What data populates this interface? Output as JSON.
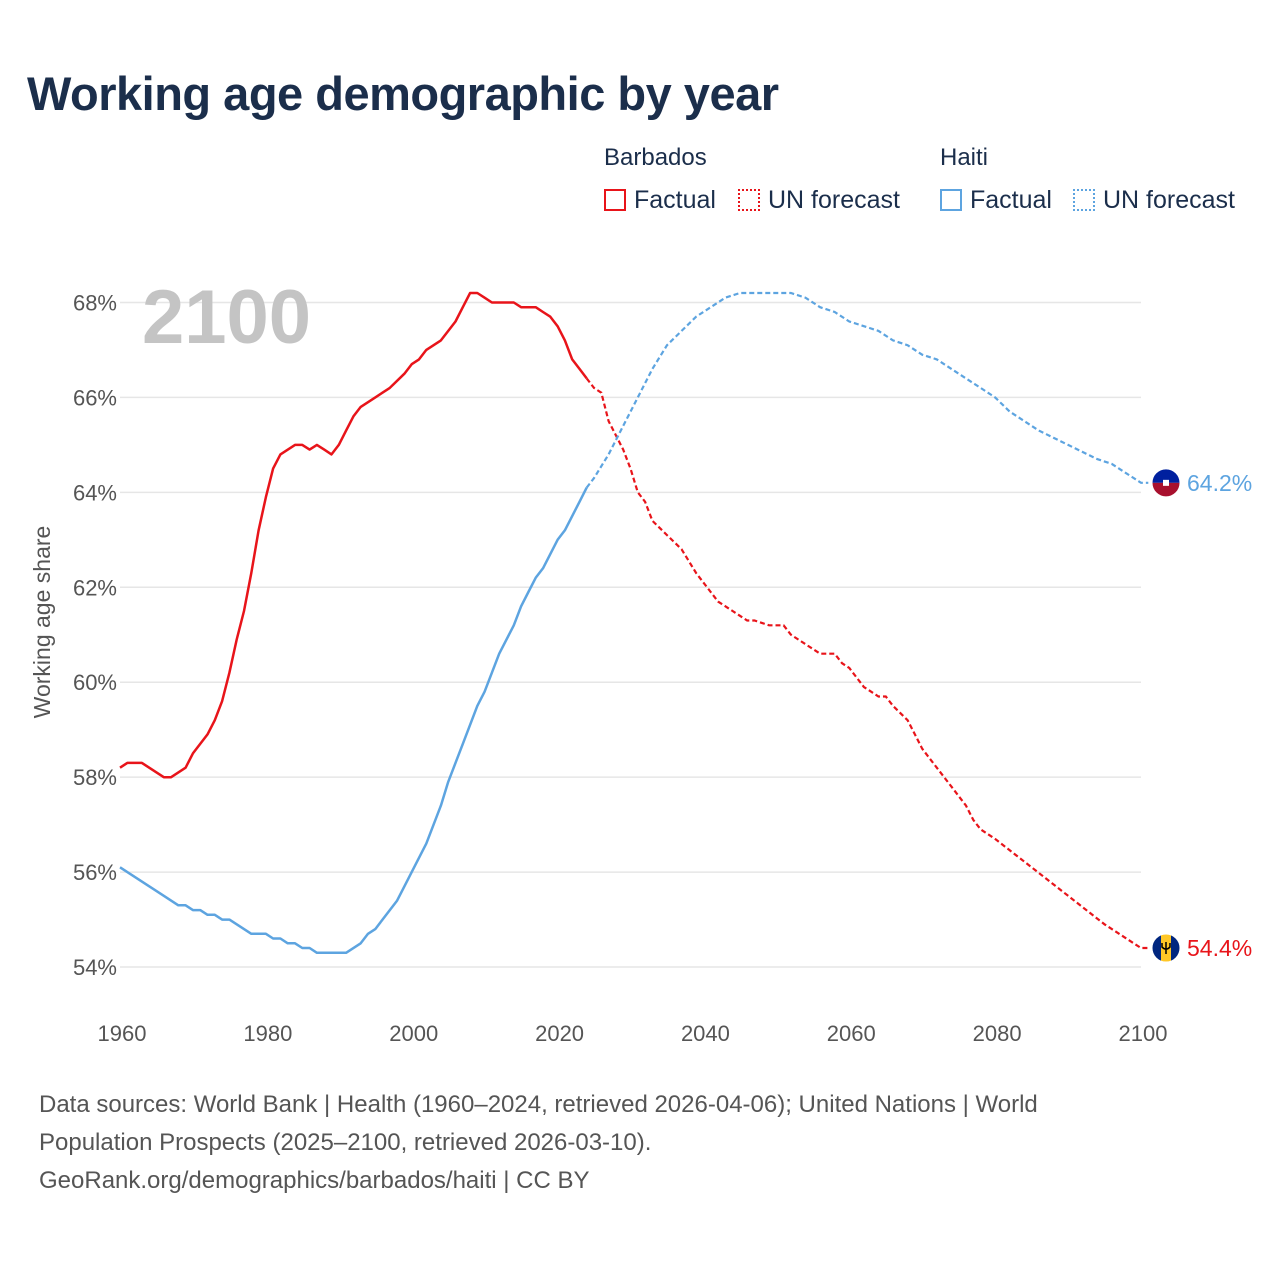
{
  "title": "Working age demographic by year",
  "legend": {
    "groups": [
      {
        "name": "Barbados",
        "factual_label": "Factual",
        "forecast_label": "UN forecast",
        "color": "#e8141a"
      },
      {
        "name": "Haiti",
        "factual_label": "Factual",
        "forecast_label": "UN forecast",
        "color": "#5da4e0"
      }
    ]
  },
  "sources": {
    "line1": "Data sources: World Bank | Health (1960–2024, retrieved 2026-04-06); United Nations | World",
    "line2": "Population Prospects (2025–2100, retrieved 2026-03-10).",
    "line3": "GeoRank.org/demographics/barbados/haiti | CC BY"
  },
  "chart_data": {
    "type": "line",
    "title": "Working age demographic by year",
    "ylabel": "Working age share",
    "xlabel": "",
    "xlim": [
      1960,
      2100
    ],
    "ylim": [
      53.2,
      69
    ],
    "x_ticks": [
      1960,
      1980,
      2000,
      2020,
      2040,
      2060,
      2080,
      2100
    ],
    "x_tick_labels": [
      "1960",
      "1980",
      "2000",
      "2020",
      "2040",
      "2060",
      "2080",
      "2100"
    ],
    "y_ticks": [
      54,
      56,
      58,
      60,
      62,
      64,
      66,
      68
    ],
    "y_tick_labels": [
      "54%",
      "56%",
      "58%",
      "60%",
      "62%",
      "64%",
      "66%",
      "68%"
    ],
    "year_watermark": "2100",
    "factual_end_year": 2024,
    "series": [
      {
        "name": "Barbados",
        "color": "#e8141a",
        "end_label": "54.4%",
        "flag": "barbados",
        "points": [
          [
            1960,
            58.2
          ],
          [
            1961,
            58.3
          ],
          [
            1963,
            58.3
          ],
          [
            1965,
            58.1
          ],
          [
            1966,
            58.0
          ],
          [
            1967,
            58.0
          ],
          [
            1969,
            58.2
          ],
          [
            1970,
            58.5
          ],
          [
            1972,
            58.9
          ],
          [
            1973,
            59.2
          ],
          [
            1974,
            59.6
          ],
          [
            1975,
            60.2
          ],
          [
            1976,
            60.9
          ],
          [
            1977,
            61.5
          ],
          [
            1978,
            62.3
          ],
          [
            1979,
            63.2
          ],
          [
            1980,
            63.9
          ],
          [
            1981,
            64.5
          ],
          [
            1982,
            64.8
          ],
          [
            1984,
            65.0
          ],
          [
            1985,
            65.0
          ],
          [
            1986,
            64.9
          ],
          [
            1987,
            65.0
          ],
          [
            1988,
            64.9
          ],
          [
            1989,
            64.8
          ],
          [
            1990,
            65.0
          ],
          [
            1991,
            65.3
          ],
          [
            1992,
            65.6
          ],
          [
            1993,
            65.8
          ],
          [
            1995,
            66.0
          ],
          [
            1997,
            66.2
          ],
          [
            1999,
            66.5
          ],
          [
            2000,
            66.7
          ],
          [
            2001,
            66.8
          ],
          [
            2002,
            67.0
          ],
          [
            2004,
            67.2
          ],
          [
            2006,
            67.6
          ],
          [
            2007,
            67.9
          ],
          [
            2008,
            68.2
          ],
          [
            2009,
            68.2
          ],
          [
            2010,
            68.1
          ],
          [
            2011,
            68.0
          ],
          [
            2014,
            68.0
          ],
          [
            2015,
            67.9
          ],
          [
            2017,
            67.9
          ],
          [
            2018,
            67.8
          ],
          [
            2019,
            67.7
          ],
          [
            2020,
            67.5
          ],
          [
            2021,
            67.2
          ],
          [
            2022,
            66.8
          ],
          [
            2023,
            66.6
          ],
          [
            2024,
            66.4
          ],
          [
            2025,
            66.2
          ],
          [
            2026,
            66.1
          ],
          [
            2027,
            65.5
          ],
          [
            2029,
            64.9
          ],
          [
            2030,
            64.5
          ],
          [
            2031,
            64.0
          ],
          [
            2032,
            63.8
          ],
          [
            2033,
            63.4
          ],
          [
            2035,
            63.1
          ],
          [
            2037,
            62.8
          ],
          [
            2039,
            62.3
          ],
          [
            2041,
            61.9
          ],
          [
            2042,
            61.7
          ],
          [
            2044,
            61.5
          ],
          [
            2046,
            61.3
          ],
          [
            2047,
            61.3
          ],
          [
            2049,
            61.2
          ],
          [
            2051,
            61.2
          ],
          [
            2052,
            61.0
          ],
          [
            2054,
            60.8
          ],
          [
            2056,
            60.6
          ],
          [
            2058,
            60.6
          ],
          [
            2059,
            60.4
          ],
          [
            2060,
            60.3
          ],
          [
            2062,
            59.9
          ],
          [
            2064,
            59.7
          ],
          [
            2065,
            59.7
          ],
          [
            2066,
            59.5
          ],
          [
            2068,
            59.2
          ],
          [
            2069,
            58.9
          ],
          [
            2070,
            58.6
          ],
          [
            2072,
            58.2
          ],
          [
            2074,
            57.8
          ],
          [
            2076,
            57.4
          ],
          [
            2077,
            57.1
          ],
          [
            2078,
            56.9
          ],
          [
            2080,
            56.7
          ],
          [
            2085,
            56.1
          ],
          [
            2090,
            55.5
          ],
          [
            2095,
            54.9
          ],
          [
            2100,
            54.4
          ],
          [
            2101,
            54.4
          ]
        ]
      },
      {
        "name": "Haiti",
        "color": "#5da4e0",
        "end_label": "64.2%",
        "flag": "haiti",
        "points": [
          [
            1960,
            56.1
          ],
          [
            1962,
            55.9
          ],
          [
            1964,
            55.7
          ],
          [
            1966,
            55.5
          ],
          [
            1968,
            55.3
          ],
          [
            1969,
            55.3
          ],
          [
            1970,
            55.2
          ],
          [
            1971,
            55.2
          ],
          [
            1972,
            55.1
          ],
          [
            1973,
            55.1
          ],
          [
            1974,
            55.0
          ],
          [
            1975,
            55.0
          ],
          [
            1976,
            54.9
          ],
          [
            1977,
            54.8
          ],
          [
            1978,
            54.7
          ],
          [
            1980,
            54.7
          ],
          [
            1981,
            54.6
          ],
          [
            1982,
            54.6
          ],
          [
            1983,
            54.5
          ],
          [
            1984,
            54.5
          ],
          [
            1985,
            54.4
          ],
          [
            1986,
            54.4
          ],
          [
            1987,
            54.3
          ],
          [
            1991,
            54.3
          ],
          [
            1993,
            54.5
          ],
          [
            1994,
            54.7
          ],
          [
            1995,
            54.8
          ],
          [
            1996,
            55.0
          ],
          [
            1998,
            55.4
          ],
          [
            2000,
            56.0
          ],
          [
            2002,
            56.6
          ],
          [
            2004,
            57.4
          ],
          [
            2005,
            57.9
          ],
          [
            2007,
            58.7
          ],
          [
            2009,
            59.5
          ],
          [
            2010,
            59.8
          ],
          [
            2011,
            60.2
          ],
          [
            2012,
            60.6
          ],
          [
            2014,
            61.2
          ],
          [
            2015,
            61.6
          ],
          [
            2016,
            61.9
          ],
          [
            2017,
            62.2
          ],
          [
            2018,
            62.4
          ],
          [
            2020,
            63.0
          ],
          [
            2021,
            63.2
          ],
          [
            2023,
            63.8
          ],
          [
            2024,
            64.1
          ],
          [
            2025,
            64.3
          ],
          [
            2027,
            64.8
          ],
          [
            2029,
            65.4
          ],
          [
            2031,
            66.0
          ],
          [
            2033,
            66.6
          ],
          [
            2035,
            67.1
          ],
          [
            2037,
            67.4
          ],
          [
            2039,
            67.7
          ],
          [
            2041,
            67.9
          ],
          [
            2043,
            68.1
          ],
          [
            2045,
            68.2
          ],
          [
            2047,
            68.2
          ],
          [
            2050,
            68.2
          ],
          [
            2052,
            68.2
          ],
          [
            2054,
            68.1
          ],
          [
            2056,
            67.9
          ],
          [
            2058,
            67.8
          ],
          [
            2060,
            67.6
          ],
          [
            2062,
            67.5
          ],
          [
            2064,
            67.4
          ],
          [
            2066,
            67.2
          ],
          [
            2068,
            67.1
          ],
          [
            2070,
            66.9
          ],
          [
            2072,
            66.8
          ],
          [
            2075,
            66.5
          ],
          [
            2078,
            66.2
          ],
          [
            2080,
            66.0
          ],
          [
            2082,
            65.7
          ],
          [
            2084,
            65.5
          ],
          [
            2086,
            65.3
          ],
          [
            2090,
            65.0
          ],
          [
            2094,
            64.7
          ],
          [
            2096,
            64.6
          ],
          [
            2100,
            64.2
          ],
          [
            2101,
            64.2
          ]
        ]
      }
    ]
  }
}
